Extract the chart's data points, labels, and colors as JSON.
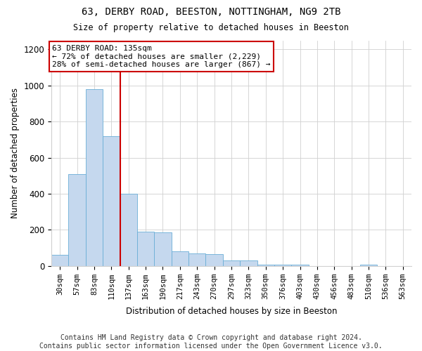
{
  "title1": "63, DERBY ROAD, BEESTON, NOTTINGHAM, NG9 2TB",
  "title2": "Size of property relative to detached houses in Beeston",
  "xlabel": "Distribution of detached houses by size in Beeston",
  "ylabel": "Number of detached properties",
  "footer": "Contains HM Land Registry data © Crown copyright and database right 2024.\nContains public sector information licensed under the Open Government Licence v3.0.",
  "categories": [
    "30sqm",
    "57sqm",
    "83sqm",
    "110sqm",
    "137sqm",
    "163sqm",
    "190sqm",
    "217sqm",
    "243sqm",
    "270sqm",
    "297sqm",
    "323sqm",
    "350sqm",
    "376sqm",
    "403sqm",
    "430sqm",
    "456sqm",
    "483sqm",
    "510sqm",
    "536sqm",
    "563sqm"
  ],
  "values": [
    60,
    510,
    980,
    720,
    400,
    190,
    185,
    80,
    70,
    65,
    30,
    30,
    5,
    5,
    5,
    0,
    0,
    0,
    5,
    0,
    0
  ],
  "bar_color": "#c5d8ee",
  "bar_edge_color": "#6aaed6",
  "red_line_x": 3.5,
  "annotation_text": "63 DERBY ROAD: 135sqm\n← 72% of detached houses are smaller (2,229)\n28% of semi-detached houses are larger (867) →",
  "annotation_box_color": "#ffffff",
  "annotation_box_edge": "#cc0000",
  "ylim": [
    0,
    1250
  ],
  "yticks": [
    0,
    200,
    400,
    600,
    800,
    1000,
    1200
  ],
  "background_color": "#ffffff",
  "grid_color": "#d0d0d0"
}
